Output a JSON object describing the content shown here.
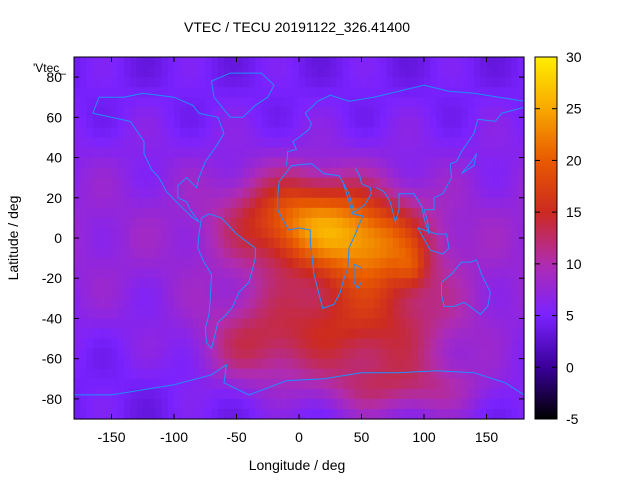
{
  "chart_data": {
    "type": "heatmap",
    "title": "VTEC / TECU 20191122_326.41400",
    "xlabel": "Longitude / deg",
    "ylabel": "Latitude / deg",
    "legend_label": "'Vtec_",
    "xlim": [
      -180,
      180
    ],
    "ylim": [
      -90,
      90
    ],
    "x_ticks": [
      -150,
      -100,
      -50,
      0,
      50,
      100,
      150
    ],
    "y_ticks": [
      -80,
      -60,
      -40,
      -20,
      0,
      20,
      40,
      60,
      80
    ],
    "colorbar": {
      "range": [
        -5,
        30
      ],
      "ticks": [
        -5,
        0,
        5,
        10,
        15,
        20,
        25,
        30
      ],
      "palette": [
        "#000000",
        "#3a0099",
        "#7a22ff",
        "#b02cb0",
        "#cc2a20",
        "#e85a00",
        "#f8a800",
        "#ffee00"
      ]
    },
    "anomaly_regions": [
      {
        "lon": 5,
        "lat": 8,
        "slon": 55,
        "slat": 22,
        "amp": 14
      },
      {
        "lon": 60,
        "lat": -5,
        "slon": 45,
        "slat": 22,
        "amp": 12
      },
      {
        "lon": 45,
        "lat": -45,
        "slon": 80,
        "slat": 25,
        "amp": 9
      },
      {
        "lon": 80,
        "lat": -75,
        "slon": 70,
        "slat": 15,
        "amp": 6
      },
      {
        "lon": -40,
        "lat": -55,
        "slon": 40,
        "slat": 20,
        "amp": 5
      },
      {
        "lon": 90,
        "lat": -15,
        "slon": 12,
        "slat": 10,
        "amp": 4
      }
    ],
    "background_level": 6,
    "grid": false
  }
}
